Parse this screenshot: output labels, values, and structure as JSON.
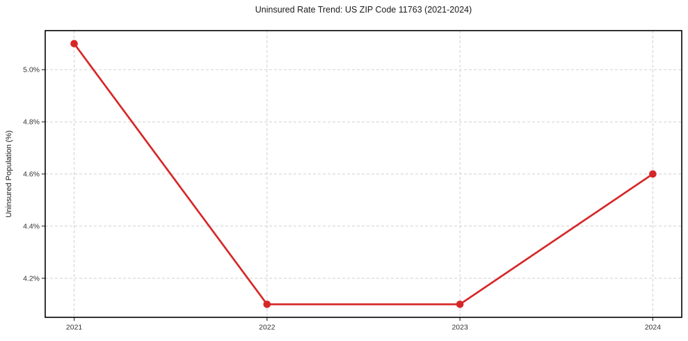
{
  "figure": {
    "background": "#ffffff"
  },
  "chart_data": {
    "type": "line",
    "title": "Uninsured Rate Trend: US ZIP Code 11763 (2021-2024)",
    "xlabel": "",
    "ylabel": "Uninsured Population (%)",
    "x": [
      2021,
      2022,
      2023,
      2024
    ],
    "values": [
      5.1,
      4.1,
      4.1,
      4.6
    ],
    "xticks": [
      2021,
      2022,
      2023,
      2024
    ],
    "xtick_labels": [
      "2021",
      "2022",
      "2023",
      "2024"
    ],
    "yticks": [
      4.2,
      4.4,
      4.6,
      4.8,
      5.0
    ],
    "ytick_labels": [
      "4.2%",
      "4.4%",
      "4.6%",
      "4.8%",
      "5.0%"
    ],
    "xlim": [
      2020.85,
      2024.15
    ],
    "ylim": [
      4.05,
      5.15
    ],
    "grid": true,
    "grid_style": "dashed",
    "legend": false,
    "marker": "circle",
    "colors": {
      "line": "#d62728",
      "marker": "#d62728",
      "grid": "#cfcfcf",
      "spine": "#000000",
      "tick": "#333333",
      "tick_label": "#333333",
      "title": "#1a1a1a"
    }
  }
}
